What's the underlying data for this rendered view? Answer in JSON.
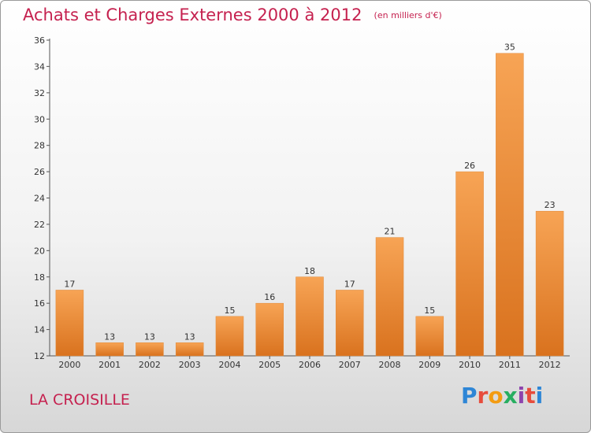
{
  "header": {
    "title": "Achats et Charges Externes 2000 à 2012",
    "unit_note": "(en milliers d'€)"
  },
  "footer": {
    "location": "LA CROISILLE",
    "logo_text": "Proxiti"
  },
  "colors": {
    "title": "#c5214f",
    "bar_top": "#f7a455",
    "bar_bottom": "#d9721e",
    "axis": "#555555"
  },
  "chart_data": {
    "type": "bar",
    "title": "Achats et Charges Externes 2000 à 2012",
    "categories": [
      "2000",
      "2001",
      "2002",
      "2003",
      "2004",
      "2005",
      "2006",
      "2007",
      "2008",
      "2009",
      "2010",
      "2011",
      "2012"
    ],
    "values": [
      17,
      13,
      13,
      13,
      15,
      16,
      18,
      17,
      21,
      15,
      26,
      35,
      23
    ],
    "ylim": [
      12,
      36
    ],
    "yticks": [
      12,
      14,
      16,
      18,
      20,
      22,
      24,
      26,
      28,
      30,
      32,
      34,
      36
    ],
    "grid": false,
    "xlabel": "",
    "ylabel": ""
  }
}
